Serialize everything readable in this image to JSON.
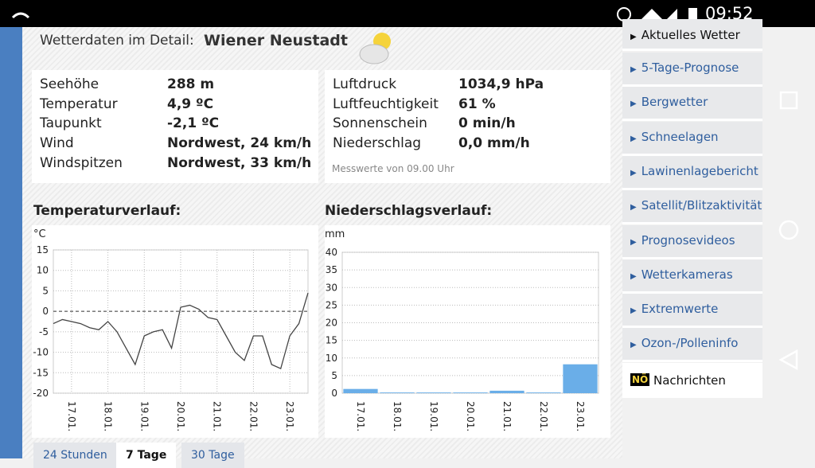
{
  "status_bar": {
    "time": "09:52"
  },
  "header": {
    "label": "Wetterdaten im Detail:",
    "station": "Wiener Neustadt"
  },
  "details": {
    "left": [
      [
        "Seehöhe",
        "288 m"
      ],
      [
        "Temperatur",
        "4,9 ºC"
      ],
      [
        "Taupunkt",
        "-2,1 ºC"
      ],
      [
        "Wind",
        "Nordwest, 24 km/h"
      ],
      [
        "Windspitzen",
        "Nordwest, 33 km/h"
      ]
    ],
    "right": [
      [
        "Luftdruck",
        "1034,9 hPa"
      ],
      [
        "Luftfeuchtigkeit",
        "61 %"
      ],
      [
        "Sonnenschein",
        "0 min/h"
      ],
      [
        "Niederschlag",
        "0,0 mm/h"
      ]
    ],
    "note": "Messwerte von 09.00 Uhr"
  },
  "sidebar": [
    "Aktuelles Wetter",
    "5-Tage-Prognose",
    "Bergwetter",
    "Schneelagen",
    "Lawinenlagebericht",
    "Satellit/Blitzaktivität",
    "Prognosevideos",
    "Wetterkameras",
    "Extremwerte",
    "Ozon-/Polleninfo"
  ],
  "news": {
    "badge": "NÖ",
    "label": "Nachrichten"
  },
  "tabs": [
    "24 Stunden",
    "7 Tage",
    "30 Tage"
  ],
  "chart_data": [
    {
      "type": "line",
      "title": "Temperaturverlauf:",
      "y_label": "°C",
      "color": "#444444",
      "categories": [
        null,
        null,
        "17.01.",
        null,
        null,
        null,
        "18.01.",
        null,
        null,
        null,
        "19.01.",
        null,
        null,
        null,
        "20.01.",
        null,
        null,
        null,
        "21.01.",
        null,
        null,
        null,
        "22.01.",
        null,
        null,
        null,
        "23.01.",
        null,
        null
      ],
      "values": [
        -3,
        -2,
        -2.5,
        -3,
        -4,
        -4.5,
        -2.5,
        -5,
        -9,
        -13,
        -6,
        -5,
        -4.5,
        -9,
        1,
        1.5,
        0.5,
        -1.5,
        -2,
        -6,
        -10,
        -12,
        -6,
        -6,
        -13,
        -14,
        -6,
        -3,
        4.5
      ],
      "ylim": [
        -20,
        15
      ],
      "yticks": [
        15,
        10,
        5,
        0,
        -5,
        -10,
        -15,
        -20
      ],
      "grid": true
    },
    {
      "type": "bar",
      "title": "Niederschlagsverlauf:",
      "y_label": "mm",
      "color": "#6aaee8",
      "categories": [
        "17.01.",
        "18.01.",
        "19.01.",
        "20.01.",
        "21.01.",
        "22.01.",
        "23.01."
      ],
      "values": [
        1.2,
        0.2,
        0.2,
        0.2,
        0.7,
        0.2,
        8.2
      ],
      "ylim": [
        0,
        40
      ],
      "yticks": [
        40,
        35,
        30,
        25,
        20,
        15,
        10,
        5,
        0
      ],
      "grid": true
    }
  ]
}
